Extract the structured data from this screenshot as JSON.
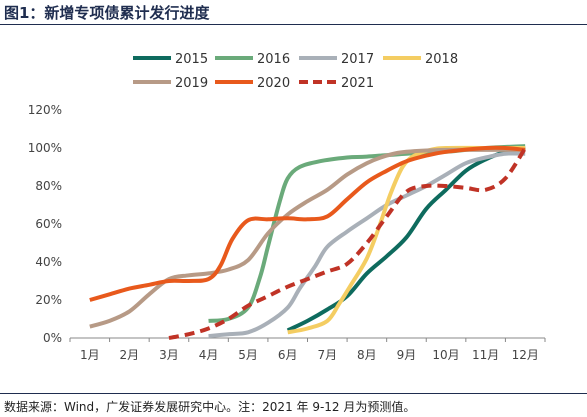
{
  "title": "图1：新增专项债累计发行进度",
  "source": "数据来源：Wind，广发证券发展研究中心。注：2021 年 9-12 月为预测值。",
  "chart_data": {
    "type": "line",
    "categories": [
      "1月",
      "2月",
      "3月",
      "4月",
      "5月",
      "6月",
      "7月",
      "8月",
      "9月",
      "10月",
      "11月",
      "12月"
    ],
    "y_ticks": [
      "0%",
      "20%",
      "40%",
      "60%",
      "80%",
      "100%",
      "120%"
    ],
    "ylim": [
      0,
      120
    ],
    "grid": false,
    "legend_position": "top",
    "series": [
      {
        "name": "2015",
        "color": "#0e6b5e",
        "dashed": false,
        "points": [
          [
            6.0,
            4
          ],
          [
            6.5,
            9
          ],
          [
            7.0,
            15
          ],
          [
            7.5,
            22
          ],
          [
            8.0,
            34
          ],
          [
            8.5,
            43
          ],
          [
            9.0,
            53
          ],
          [
            9.5,
            68
          ],
          [
            10.0,
            78
          ],
          [
            10.5,
            88
          ],
          [
            11.0,
            94
          ],
          [
            11.5,
            98
          ],
          [
            12.0,
            100
          ]
        ]
      },
      {
        "name": "2016",
        "color": "#6aaa7a",
        "dashed": false,
        "points": [
          [
            4.0,
            9
          ],
          [
            4.5,
            10
          ],
          [
            5.0,
            16
          ],
          [
            5.3,
            32
          ],
          [
            5.5,
            48
          ],
          [
            5.8,
            72
          ],
          [
            6.0,
            84
          ],
          [
            6.3,
            90
          ],
          [
            6.8,
            93
          ],
          [
            7.5,
            95
          ],
          [
            8.0,
            95.5
          ],
          [
            9.0,
            97
          ],
          [
            10.0,
            98
          ],
          [
            11.0,
            100
          ],
          [
            12.0,
            101
          ]
        ]
      },
      {
        "name": "2017",
        "color": "#a9b0b8",
        "dashed": false,
        "points": [
          [
            4.0,
            1
          ],
          [
            4.5,
            2
          ],
          [
            5.0,
            3
          ],
          [
            5.5,
            8
          ],
          [
            6.0,
            16
          ],
          [
            6.3,
            26
          ],
          [
            6.7,
            38
          ],
          [
            7.0,
            48
          ],
          [
            7.5,
            56
          ],
          [
            8.0,
            63
          ],
          [
            8.5,
            70
          ],
          [
            9.0,
            75
          ],
          [
            9.5,
            80
          ],
          [
            10.0,
            86
          ],
          [
            10.5,
            92
          ],
          [
            11.0,
            95
          ],
          [
            11.5,
            97
          ],
          [
            12.0,
            97
          ]
        ]
      },
      {
        "name": "2018",
        "color": "#f4cd62",
        "dashed": false,
        "points": [
          [
            6.0,
            3
          ],
          [
            6.5,
            5
          ],
          [
            7.0,
            9
          ],
          [
            7.3,
            18
          ],
          [
            7.6,
            28
          ],
          [
            8.0,
            42
          ],
          [
            8.3,
            58
          ],
          [
            8.6,
            76
          ],
          [
            8.9,
            90
          ],
          [
            9.2,
            96
          ],
          [
            9.6,
            99
          ],
          [
            10.0,
            100
          ],
          [
            11.0,
            100
          ],
          [
            12.0,
            100
          ]
        ]
      },
      {
        "name": "2019",
        "color": "#b79a86",
        "dashed": false,
        "points": [
          [
            1.0,
            6
          ],
          [
            1.5,
            9
          ],
          [
            2.0,
            14
          ],
          [
            2.5,
            23
          ],
          [
            3.0,
            31
          ],
          [
            3.5,
            33
          ],
          [
            4.0,
            34
          ],
          [
            4.5,
            36
          ],
          [
            5.0,
            41
          ],
          [
            5.5,
            55
          ],
          [
            6.0,
            65
          ],
          [
            6.5,
            72
          ],
          [
            7.0,
            78
          ],
          [
            7.5,
            86
          ],
          [
            8.0,
            92
          ],
          [
            8.5,
            96
          ],
          [
            9.0,
            98
          ],
          [
            10.0,
            99
          ],
          [
            11.0,
            99
          ],
          [
            12.0,
            99
          ]
        ]
      },
      {
        "name": "2020",
        "color": "#e8591c",
        "dashed": false,
        "points": [
          [
            1.0,
            20
          ],
          [
            1.5,
            23
          ],
          [
            2.0,
            26
          ],
          [
            2.5,
            28
          ],
          [
            3.0,
            30
          ],
          [
            3.5,
            30
          ],
          [
            4.0,
            31
          ],
          [
            4.3,
            38
          ],
          [
            4.6,
            52
          ],
          [
            5.0,
            62
          ],
          [
            5.5,
            62.5
          ],
          [
            6.0,
            63
          ],
          [
            6.5,
            62.5
          ],
          [
            7.0,
            64
          ],
          [
            7.5,
            73
          ],
          [
            8.0,
            82
          ],
          [
            8.5,
            88
          ],
          [
            9.0,
            93
          ],
          [
            9.5,
            96
          ],
          [
            10.0,
            98
          ],
          [
            11.0,
            100
          ],
          [
            11.5,
            100
          ],
          [
            12.0,
            99
          ]
        ]
      },
      {
        "name": "2021",
        "color": "#c03326",
        "dashed": true,
        "points": [
          [
            3.0,
            0
          ],
          [
            3.5,
            2
          ],
          [
            4.0,
            5
          ],
          [
            4.5,
            10
          ],
          [
            5.0,
            17
          ],
          [
            5.5,
            22
          ],
          [
            6.0,
            27
          ],
          [
            6.5,
            31
          ],
          [
            7.0,
            35
          ],
          [
            7.5,
            39
          ],
          [
            8.0,
            50
          ],
          [
            8.5,
            64
          ],
          [
            9.0,
            77
          ],
          [
            9.5,
            80
          ],
          [
            10.0,
            80
          ],
          [
            10.5,
            79
          ],
          [
            11.0,
            78
          ],
          [
            11.5,
            84
          ],
          [
            12.0,
            100
          ]
        ]
      }
    ]
  }
}
